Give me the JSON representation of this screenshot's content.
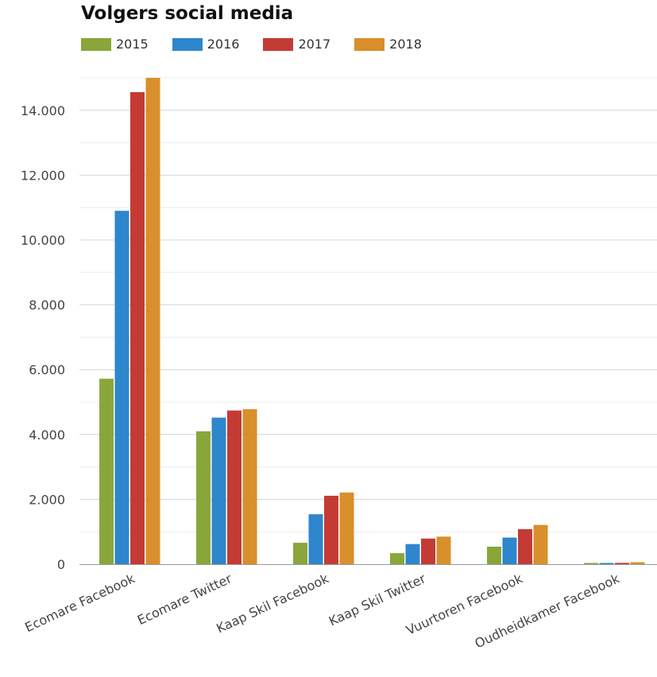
{
  "chart_data": {
    "type": "bar",
    "title": "Volgers social media",
    "categories": [
      "Ecomare Facebook",
      "Ecomare Twitter",
      "Kaap Skil Facebook",
      "Kaap Skil Twitter",
      "Vuurtoren Facebook",
      "Oudheidkamer Facebook"
    ],
    "series": [
      {
        "name": "2015",
        "color": "#8aa63a",
        "values": [
          5720,
          4100,
          660,
          340,
          540,
          20
        ]
      },
      {
        "name": "2016",
        "color": "#2e86cc",
        "values": [
          10900,
          4520,
          1540,
          620,
          820,
          30
        ]
      },
      {
        "name": "2017",
        "color": "#c43b36",
        "values": [
          14560,
          4740,
          2110,
          790,
          1080,
          40
        ]
      },
      {
        "name": "2018",
        "color": "#d98f2b",
        "values": [
          15000,
          4780,
          2210,
          850,
          1210,
          60
        ]
      }
    ],
    "yticks": [
      "0",
      "2.000",
      "4.000",
      "6.000",
      "8.000",
      "10.000",
      "12.000",
      "14.000"
    ],
    "ylim": [
      0,
      15000
    ],
    "grid": true,
    "legend_position": "top-left"
  }
}
